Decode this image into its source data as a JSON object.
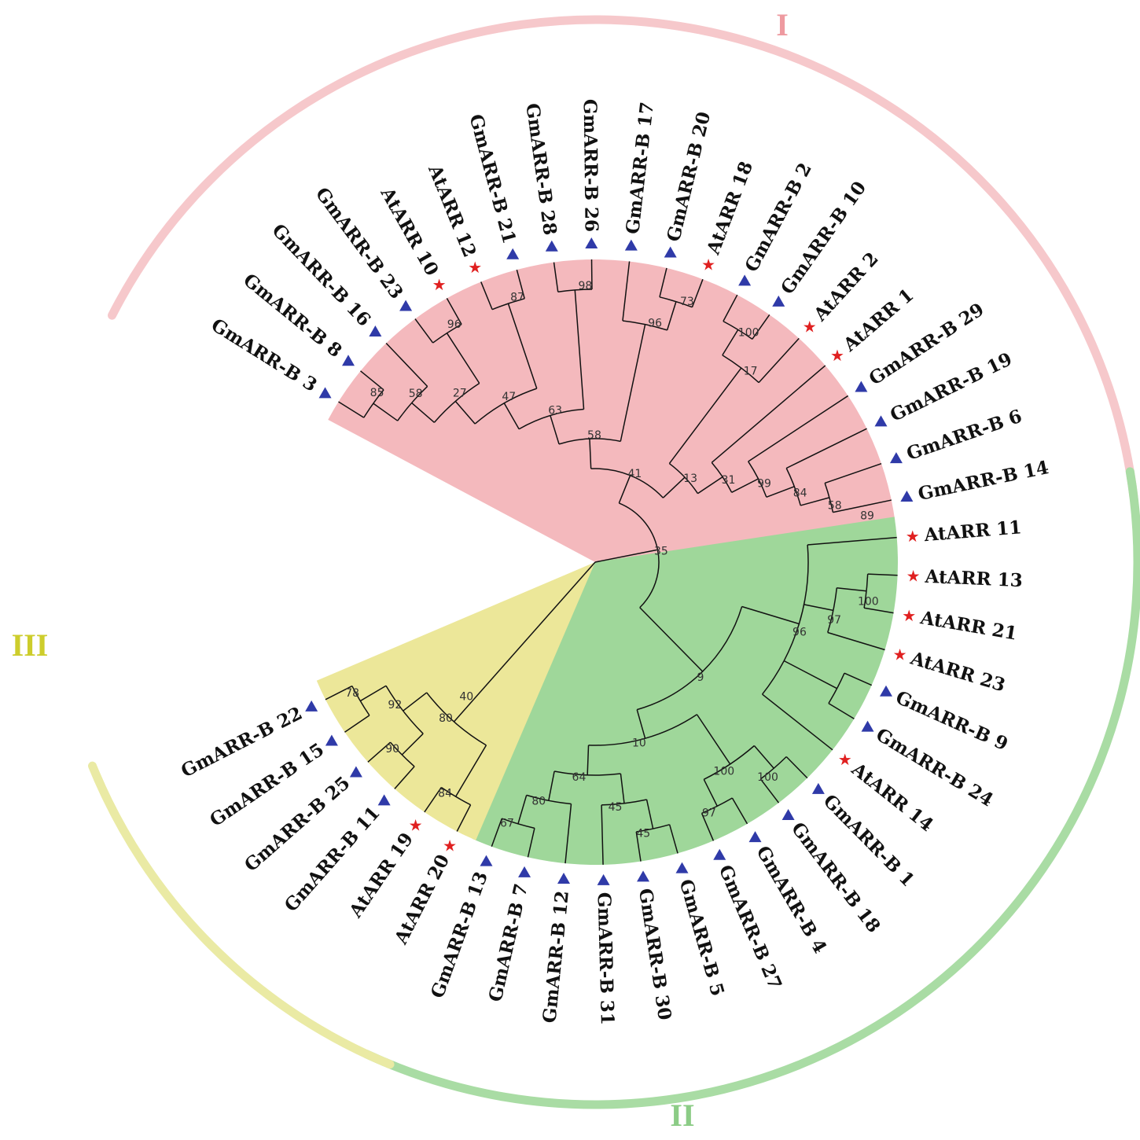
{
  "colors": {
    "clade_I": "#f4b9bd",
    "clade_II": "#9fd79a",
    "clade_III": "#ece799",
    "arc_I": "#f6c8cb",
    "arc_II": "#a9dca4",
    "arc_III": "#eaeaa4",
    "label_I": "#ee9aa0",
    "label_II": "#8ccc86",
    "label_III": "#cdcd2c",
    "star_marker": "#e02020",
    "triangle_marker": "#2f3aa8"
  },
  "clades": [
    {
      "id": "I",
      "label": "I"
    },
    {
      "id": "II",
      "label": "II"
    },
    {
      "id": "III",
      "label": "III"
    }
  ],
  "leaves": [
    {
      "name": "GmARR-B 3",
      "clade": "I",
      "marker": "triangle"
    },
    {
      "name": "GmARR-B 8",
      "clade": "I",
      "marker": "triangle"
    },
    {
      "name": "GmARR-B 16",
      "clade": "I",
      "marker": "triangle"
    },
    {
      "name": "GmARR-B 23",
      "clade": "I",
      "marker": "triangle"
    },
    {
      "name": "AtARR 10",
      "clade": "I",
      "marker": "star"
    },
    {
      "name": "AtARR 12",
      "clade": "I",
      "marker": "star"
    },
    {
      "name": "GmARR-B 21",
      "clade": "I",
      "marker": "triangle"
    },
    {
      "name": "GmARR-B 28",
      "clade": "I",
      "marker": "triangle"
    },
    {
      "name": "GmARR-B 26",
      "clade": "I",
      "marker": "triangle"
    },
    {
      "name": "GmARR-B 17",
      "clade": "I",
      "marker": "triangle"
    },
    {
      "name": "GmARR-B 20",
      "clade": "I",
      "marker": "triangle"
    },
    {
      "name": "AtARR 18",
      "clade": "I",
      "marker": "star"
    },
    {
      "name": "GmARR-B 2",
      "clade": "I",
      "marker": "triangle"
    },
    {
      "name": "GmARR-B 10",
      "clade": "I",
      "marker": "triangle"
    },
    {
      "name": "AtARR 2",
      "clade": "I",
      "marker": "star"
    },
    {
      "name": "AtARR 1",
      "clade": "I",
      "marker": "star"
    },
    {
      "name": "GmARR-B 29",
      "clade": "I",
      "marker": "triangle"
    },
    {
      "name": "GmARR-B 19",
      "clade": "I",
      "marker": "triangle"
    },
    {
      "name": "GmARR-B 6",
      "clade": "I",
      "marker": "triangle"
    },
    {
      "name": "GmARR-B 14",
      "clade": "I",
      "marker": "triangle"
    },
    {
      "name": "AtARR 11",
      "clade": "II",
      "marker": "star"
    },
    {
      "name": "AtARR 13",
      "clade": "II",
      "marker": "star"
    },
    {
      "name": "AtARR 21",
      "clade": "II",
      "marker": "star"
    },
    {
      "name": "AtARR 23",
      "clade": "II",
      "marker": "star"
    },
    {
      "name": "GmARR-B 9",
      "clade": "II",
      "marker": "triangle"
    },
    {
      "name": "GmARR-B 24",
      "clade": "II",
      "marker": "triangle"
    },
    {
      "name": "AtARR 14",
      "clade": "II",
      "marker": "star"
    },
    {
      "name": "GmARR-B 1",
      "clade": "II",
      "marker": "triangle"
    },
    {
      "name": "GmARR-B 18",
      "clade": "II",
      "marker": "triangle"
    },
    {
      "name": "GmARR-B 4",
      "clade": "II",
      "marker": "triangle"
    },
    {
      "name": "GmARR-B 27",
      "clade": "II",
      "marker": "triangle"
    },
    {
      "name": "GmARR-B 5",
      "clade": "II",
      "marker": "triangle"
    },
    {
      "name": "GmARR-B 30",
      "clade": "II",
      "marker": "triangle"
    },
    {
      "name": "GmARR-B 31",
      "clade": "II",
      "marker": "triangle"
    },
    {
      "name": "GmARR-B 12",
      "clade": "II",
      "marker": "triangle"
    },
    {
      "name": "GmARR-B 7",
      "clade": "II",
      "marker": "triangle"
    },
    {
      "name": "GmARR-B 13",
      "clade": "II",
      "marker": "triangle"
    },
    {
      "name": "AtARR 20",
      "clade": "III",
      "marker": "star"
    },
    {
      "name": "AtARR 19",
      "clade": "III",
      "marker": "star"
    },
    {
      "name": "GmARR-B 11",
      "clade": "III",
      "marker": "triangle"
    },
    {
      "name": "GmARR-B 25",
      "clade": "III",
      "marker": "triangle"
    },
    {
      "name": "GmARR-B 15",
      "clade": "III",
      "marker": "triangle"
    },
    {
      "name": "GmARR-B 22",
      "clade": "III",
      "marker": "triangle"
    }
  ],
  "tree": {
    "children": [
      {
        "support": "35",
        "children": [
          {
            "support": "41",
            "children": [
              {
                "support": "58",
                "children": [
                  {
                    "support": "63",
                    "children": [
                      {
                        "support": "47",
                        "children": [
                          {
                            "support": "27",
                            "children": [
                              {
                                "support": "58",
                                "children": [
                                  {
                                    "support": "85",
                                    "children": [
                                      {
                                        "leaf": "GmARR-B 3"
                                      },
                                      {
                                        "leaf": "GmARR-B 8"
                                      }
                                    ]
                                  },
                                  {
                                    "leaf": "GmARR-B 16"
                                  }
                                ]
                              },
                              {
                                "support": "96",
                                "children": [
                                  {
                                    "leaf": "GmARR-B 23"
                                  },
                                  {
                                    "leaf": "AtARR 10"
                                  }
                                ]
                              }
                            ]
                          },
                          {
                            "support": "87",
                            "children": [
                              {
                                "leaf": "AtARR 12"
                              },
                              {
                                "leaf": "GmARR-B 21"
                              }
                            ]
                          }
                        ]
                      },
                      {
                        "support": "98",
                        "children": [
                          {
                            "leaf": "GmARR-B 28"
                          },
                          {
                            "leaf": "GmARR-B 26"
                          }
                        ]
                      }
                    ]
                  },
                  {
                    "support": "96",
                    "children": [
                      {
                        "leaf": "GmARR-B 17"
                      },
                      {
                        "support": "73",
                        "children": [
                          {
                            "leaf": "GmARR-B 20"
                          },
                          {
                            "leaf": "AtARR 18"
                          }
                        ]
                      }
                    ]
                  }
                ]
              },
              {
                "support": "13",
                "children": [
                  {
                    "support": "17",
                    "children": [
                      {
                        "support": "100",
                        "children": [
                          {
                            "leaf": "GmARR-B 2"
                          },
                          {
                            "leaf": "GmARR-B 10"
                          }
                        ]
                      },
                      {
                        "leaf": "AtARR 2"
                      }
                    ]
                  },
                  {
                    "support": "31",
                    "children": [
                      {
                        "leaf": "AtARR 1"
                      },
                      {
                        "support": "99",
                        "children": [
                          {
                            "leaf": "GmARR-B 29"
                          },
                          {
                            "support": "84",
                            "children": [
                              {
                                "leaf": "GmARR-B 19"
                              },
                              {
                                "support": "58",
                                "children": [
                                  {
                                    "leaf": "GmARR-B 6"
                                  },
                                  {
                                    "support": "89",
                                    "children": [
                                      {
                                        "leaf": "GmARR-B 14"
                                      }
                                    ]
                                  }
                                ]
                              }
                            ]
                          }
                        ]
                      }
                    ]
                  }
                ]
              }
            ]
          },
          {
            "support": "9",
            "children": [
              {
                "support": "96",
                "children": [
                  {
                    "leaf": "AtARR 11"
                  },
                  {
                    "support": "97",
                    "children": [
                      {
                        "support": "100",
                        "children": [
                          {
                            "leaf": "AtARR 13"
                          },
                          {
                            "leaf": "AtARR 21"
                          }
                        ]
                      },
                      {
                        "leaf": "AtARR 23"
                      }
                    ]
                  },
                  {
                    "children": [
                      {
                        "leaf": "GmARR-B 9"
                      },
                      {
                        "leaf": "GmARR-B 24"
                      }
                    ]
                  },
                  {
                    "leaf": "AtARR 14"
                  }
                ]
              },
              {
                "support": "10",
                "children": [
                  {
                    "support": "100",
                    "children": [
                      {
                        "support": "100",
                        "children": [
                          {
                            "leaf": "GmARR-B 1"
                          },
                          {
                            "leaf": "GmARR-B 18"
                          }
                        ]
                      },
                      {
                        "support": "97",
                        "children": [
                          {
                            "leaf": "GmARR-B 4"
                          },
                          {
                            "leaf": "GmARR-B 27"
                          }
                        ]
                      }
                    ]
                  },
                  {
                    "support": "64",
                    "children": [
                      {
                        "support": "45",
                        "children": [
                          {
                            "support": "45",
                            "children": [
                              {
                                "leaf": "GmARR-B 5"
                              },
                              {
                                "leaf": "GmARR-B 30"
                              }
                            ]
                          },
                          {
                            "leaf": "GmARR-B 31"
                          }
                        ]
                      },
                      {
                        "support": "80",
                        "children": [
                          {
                            "leaf": "GmARR-B 12"
                          },
                          {
                            "support": "67",
                            "children": [
                              {
                                "leaf": "GmARR-B 7"
                              },
                              {
                                "leaf": "GmARR-B 13"
                              }
                            ]
                          }
                        ]
                      }
                    ]
                  }
                ]
              }
            ]
          }
        ]
      },
      {
        "support": "40",
        "children": [
          {
            "support": "80",
            "children": [
              {
                "support": "84",
                "children": [
                  {
                    "leaf": "AtARR 20"
                  },
                  {
                    "leaf": "AtARR 19"
                  }
                ]
              },
              {
                "support": "92",
                "children": [
                  {
                    "support": "90",
                    "children": [
                      {
                        "leaf": "GmARR-B 11"
                      },
                      {
                        "leaf": "GmARR-B 25"
                      }
                    ]
                  },
                  {
                    "support": "78",
                    "children": [
                      {
                        "leaf": "GmARR-B 15"
                      },
                      {
                        "leaf": "GmARR-B 22"
                      }
                    ]
                  }
                ]
              }
            ]
          }
        ]
      }
    ]
  }
}
